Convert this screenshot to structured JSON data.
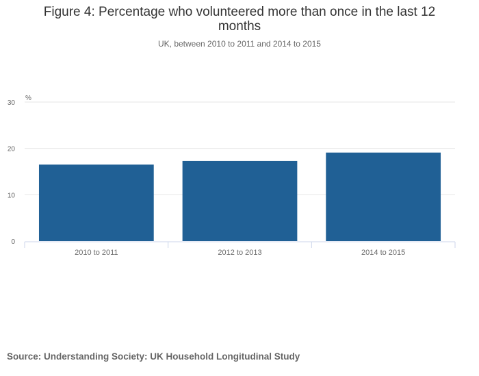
{
  "chart_data": {
    "type": "bar",
    "title": "Figure 4: Percentage who volunteered more than once in the last 12 months",
    "subtitle": "UK, between 2010 to 2011 and 2014 to 2015",
    "ylabel": "%",
    "xlabel": "",
    "categories": [
      "2010 to 2011",
      "2012 to 2013",
      "2014 to 2015"
    ],
    "values": [
      16.5,
      17.3,
      19.1
    ],
    "ylim": [
      0,
      30
    ],
    "yticks": [
      "0",
      "10",
      "20",
      "30"
    ],
    "grid": true,
    "bar_color": "#206095",
    "grid_color": "#e6e6e6"
  },
  "source": "Source: Understanding Society: UK Household Longitudinal Study"
}
